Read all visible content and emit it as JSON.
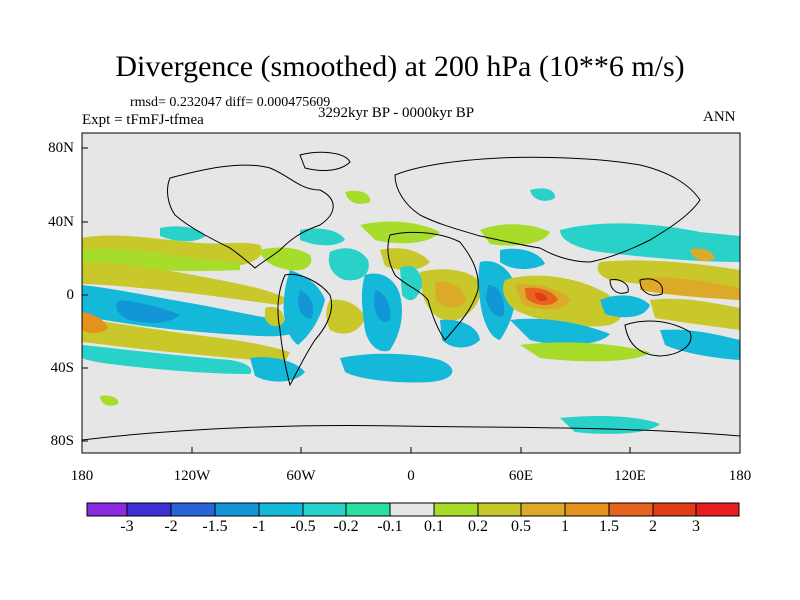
{
  "title": "Divergence (smoothed) at 200 hPa (10**6 m/s)",
  "stats": "rmsd= 0.232047 diff= 0.000475609",
  "experiment": "Expt = tFmFJ-tfmea",
  "period": "3292kyr BP - 0000kyr BP",
  "season": "ANN",
  "y_ticks": [
    "80N",
    "40N",
    "0",
    "40S",
    "80S"
  ],
  "x_ticks": [
    "180",
    "120W",
    "60W",
    "0",
    "60E",
    "120E",
    "180"
  ],
  "colorbar": {
    "labels": [
      "-3",
      "-2",
      "-1.5",
      "-1",
      "-0.5",
      "-0.2",
      "-0.1",
      "0.1",
      "0.2",
      "0.5",
      "1",
      "1.5",
      "2",
      "3"
    ],
    "colors": [
      "#8a2be2",
      "#3c2fd4",
      "#2a62d8",
      "#1296d8",
      "#14b8d8",
      "#28d2c8",
      "#2ae0a0",
      "#e6e6e6",
      "#a8dc2a",
      "#c8c82a",
      "#dcaa28",
      "#e6901e",
      "#e6641e",
      "#e03c18",
      "#e61e1e"
    ]
  }
}
